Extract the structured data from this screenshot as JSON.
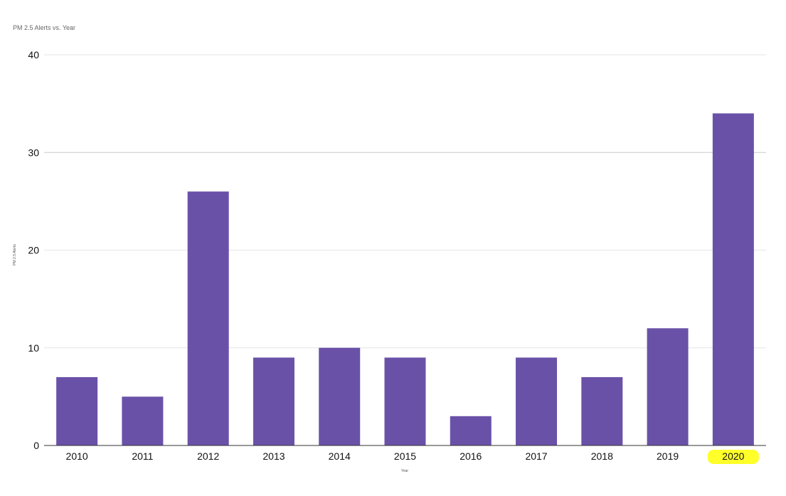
{
  "colors": {
    "bar": "#6a51a8",
    "grid": "#e6e6e6",
    "axis": "#333333",
    "highlight": "#ffff2a",
    "text": "#111111",
    "title": "#666666"
  },
  "chart_data": {
    "type": "bar",
    "title": "PM 2.5 Alerts vs. Year",
    "xlabel": "Year",
    "ylabel": "PM 2.5 Alerts",
    "categories": [
      "2010",
      "2011",
      "2012",
      "2013",
      "2014",
      "2015",
      "2016",
      "2017",
      "2018",
      "2019",
      "2020"
    ],
    "values": [
      7,
      5,
      26,
      9,
      10,
      9,
      3,
      9,
      7,
      12,
      34
    ],
    "ylim": [
      0,
      40
    ],
    "yticks": [
      "0",
      "10",
      "20",
      "30",
      "40"
    ],
    "grid": true,
    "highlighted_category": "2020"
  }
}
